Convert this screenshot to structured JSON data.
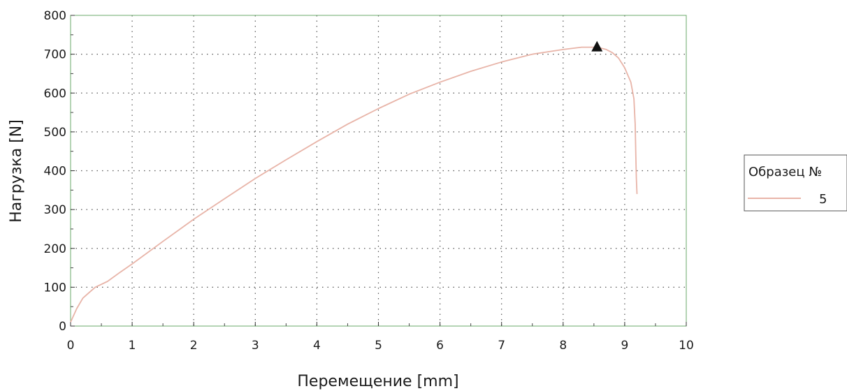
{
  "chart_data": {
    "type": "line",
    "xlabel": "Перемещение [mm]",
    "ylabel": "Нагрузка [N]",
    "xlim": [
      0,
      10
    ],
    "ylim": [
      0,
      800
    ],
    "x_ticks": [
      "0",
      "1",
      "2",
      "3",
      "4",
      "5",
      "6",
      "7",
      "8",
      "9",
      "10"
    ],
    "y_ticks": [
      "0",
      "100",
      "200",
      "300",
      "400",
      "500",
      "600",
      "700",
      "800"
    ],
    "grid": true,
    "legend": {
      "title": "Образец №",
      "position": "right"
    },
    "series": [
      {
        "name": "5",
        "color": "#e8b4a8",
        "points": [
          [
            0,
            10
          ],
          [
            0.1,
            45
          ],
          [
            0.2,
            72
          ],
          [
            0.4,
            100
          ],
          [
            0.6,
            115
          ],
          [
            0.8,
            138
          ],
          [
            1.0,
            160
          ],
          [
            1.5,
            218
          ],
          [
            2.0,
            275
          ],
          [
            2.5,
            328
          ],
          [
            3.0,
            380
          ],
          [
            3.5,
            428
          ],
          [
            4.0,
            475
          ],
          [
            4.5,
            520
          ],
          [
            5.0,
            560
          ],
          [
            5.5,
            597
          ],
          [
            6.0,
            628
          ],
          [
            6.5,
            656
          ],
          [
            7.0,
            680
          ],
          [
            7.5,
            700
          ],
          [
            8.0,
            712
          ],
          [
            8.3,
            718
          ],
          [
            8.55,
            718
          ],
          [
            8.7,
            712
          ],
          [
            8.8,
            704
          ],
          [
            8.9,
            690
          ],
          [
            9.0,
            665
          ],
          [
            9.1,
            628
          ],
          [
            9.15,
            585
          ],
          [
            9.17,
            520
          ],
          [
            9.18,
            440
          ],
          [
            9.19,
            380
          ],
          [
            9.2,
            340
          ]
        ]
      }
    ],
    "marker": {
      "shape": "triangle",
      "x": 8.55,
      "y": 718,
      "color": "#111111"
    }
  }
}
